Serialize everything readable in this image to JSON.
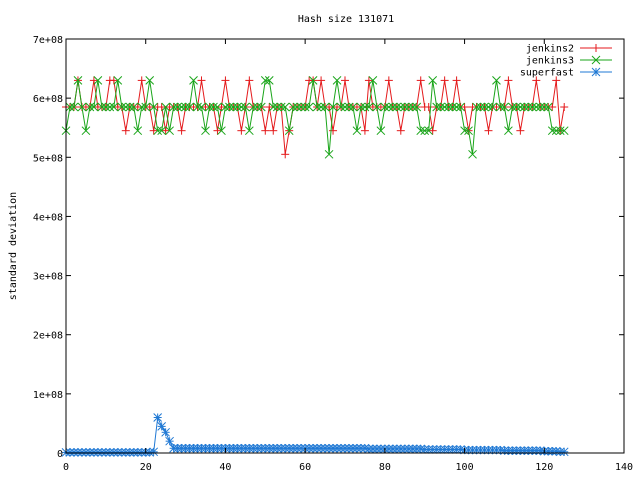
{
  "chart_data": {
    "type": "line",
    "title": "Hash size 131071",
    "xlabel": "",
    "ylabel": "standard deviation",
    "xlim": [
      0,
      140
    ],
    "ylim": [
      0,
      700000000
    ],
    "x_ticks": [
      0,
      20,
      40,
      60,
      80,
      100,
      120,
      140
    ],
    "x_tick_labels": [
      "0",
      "20",
      "40",
      "60",
      "80",
      "100",
      "120",
      "140"
    ],
    "y_ticks": [
      0,
      100000000,
      200000000,
      300000000,
      400000000,
      500000000,
      600000000,
      700000000
    ],
    "y_tick_labels": [
      "0",
      "1e+08",
      "2e+08",
      "3e+08",
      "4e+08",
      "5e+08",
      "6e+08",
      "7e+08"
    ],
    "grid": false,
    "legend_position": "top-right",
    "x": [
      0,
      1,
      2,
      3,
      4,
      5,
      6,
      7,
      8,
      9,
      10,
      11,
      12,
      13,
      14,
      15,
      16,
      17,
      18,
      19,
      20,
      21,
      22,
      23,
      24,
      25,
      26,
      27,
      28,
      29,
      30,
      31,
      32,
      33,
      34,
      35,
      36,
      37,
      38,
      39,
      40,
      41,
      42,
      43,
      44,
      45,
      46,
      47,
      48,
      49,
      50,
      51,
      52,
      53,
      54,
      55,
      56,
      57,
      58,
      59,
      60,
      61,
      62,
      63,
      64,
      65,
      66,
      67,
      68,
      69,
      70,
      71,
      72,
      73,
      74,
      75,
      76,
      77,
      78,
      79,
      80,
      81,
      82,
      83,
      84,
      85,
      86,
      87,
      88,
      89,
      90,
      91,
      92,
      93,
      94,
      95,
      96,
      97,
      98,
      99,
      100,
      101,
      102,
      103,
      104,
      105,
      106,
      107,
      108,
      109,
      110,
      111,
      112,
      113,
      114,
      115,
      116,
      117,
      118,
      119,
      120,
      121,
      122,
      123,
      124,
      125
    ],
    "series": [
      {
        "name": "jenkins2",
        "color": "#e41a1c",
        "marker": "plus",
        "values": [
          585000000,
          585000000,
          585000000,
          630000000,
          585000000,
          585000000,
          585000000,
          630000000,
          585000000,
          585000000,
          585000000,
          630000000,
          630000000,
          585000000,
          585000000,
          545000000,
          585000000,
          585000000,
          585000000,
          630000000,
          585000000,
          585000000,
          545000000,
          585000000,
          585000000,
          545000000,
          585000000,
          585000000,
          585000000,
          545000000,
          585000000,
          585000000,
          585000000,
          585000000,
          630000000,
          585000000,
          585000000,
          585000000,
          545000000,
          585000000,
          630000000,
          585000000,
          585000000,
          585000000,
          545000000,
          585000000,
          630000000,
          585000000,
          585000000,
          585000000,
          545000000,
          585000000,
          545000000,
          585000000,
          585000000,
          505000000,
          545000000,
          585000000,
          585000000,
          585000000,
          585000000,
          630000000,
          630000000,
          585000000,
          630000000,
          585000000,
          585000000,
          545000000,
          585000000,
          585000000,
          630000000,
          585000000,
          585000000,
          585000000,
          585000000,
          545000000,
          630000000,
          585000000,
          585000000,
          585000000,
          585000000,
          630000000,
          585000000,
          585000000,
          545000000,
          585000000,
          585000000,
          585000000,
          585000000,
          630000000,
          585000000,
          585000000,
          545000000,
          585000000,
          585000000,
          630000000,
          585000000,
          585000000,
          630000000,
          585000000,
          585000000,
          545000000,
          585000000,
          585000000,
          585000000,
          585000000,
          545000000,
          585000000,
          585000000,
          585000000,
          585000000,
          630000000,
          585000000,
          585000000,
          545000000,
          585000000,
          585000000,
          585000000,
          630000000,
          585000000,
          585000000,
          585000000,
          585000000,
          630000000,
          545000000,
          585000000
        ]
      },
      {
        "name": "jenkins3",
        "color": "#1aa51a",
        "marker": "cross",
        "values": [
          545000000,
          585000000,
          585000000,
          630000000,
          585000000,
          545000000,
          585000000,
          585000000,
          630000000,
          585000000,
          585000000,
          585000000,
          585000000,
          630000000,
          585000000,
          585000000,
          585000000,
          585000000,
          545000000,
          585000000,
          585000000,
          630000000,
          585000000,
          545000000,
          545000000,
          585000000,
          545000000,
          585000000,
          585000000,
          585000000,
          585000000,
          585000000,
          630000000,
          585000000,
          585000000,
          545000000,
          585000000,
          585000000,
          585000000,
          545000000,
          585000000,
          585000000,
          585000000,
          585000000,
          585000000,
          585000000,
          545000000,
          585000000,
          585000000,
          585000000,
          630000000,
          630000000,
          585000000,
          585000000,
          585000000,
          585000000,
          545000000,
          585000000,
          585000000,
          585000000,
          585000000,
          585000000,
          630000000,
          585000000,
          585000000,
          585000000,
          505000000,
          585000000,
          630000000,
          585000000,
          585000000,
          585000000,
          585000000,
          545000000,
          585000000,
          585000000,
          585000000,
          630000000,
          585000000,
          545000000,
          585000000,
          585000000,
          585000000,
          585000000,
          585000000,
          585000000,
          585000000,
          585000000,
          585000000,
          545000000,
          545000000,
          545000000,
          630000000,
          585000000,
          585000000,
          585000000,
          585000000,
          585000000,
          585000000,
          585000000,
          545000000,
          545000000,
          505000000,
          585000000,
          585000000,
          585000000,
          585000000,
          585000000,
          630000000,
          585000000,
          585000000,
          545000000,
          585000000,
          585000000,
          585000000,
          585000000,
          585000000,
          585000000,
          585000000,
          585000000,
          585000000,
          585000000,
          545000000,
          545000000,
          545000000,
          545000000
        ]
      },
      {
        "name": "superfast",
        "color": "#1f78d4",
        "marker": "star",
        "values": [
          1000000,
          1000000,
          1000000,
          1000000,
          1000000,
          1000000,
          1000000,
          1000000,
          1000000,
          1000000,
          1000000,
          1000000,
          1000000,
          1000000,
          1000000,
          1000000,
          1000000,
          1000000,
          1000000,
          1000000,
          1000000,
          1000000,
          2000000,
          60000000,
          45000000,
          35000000,
          20000000,
          8000000,
          8000000,
          8000000,
          8000000,
          8000000,
          8000000,
          8000000,
          8000000,
          8000000,
          8000000,
          8000000,
          8000000,
          8000000,
          8000000,
          8000000,
          8000000,
          8000000,
          8000000,
          8000000,
          8000000,
          8000000,
          8000000,
          8000000,
          8000000,
          8000000,
          8000000,
          8000000,
          8000000,
          8000000,
          8000000,
          8000000,
          8000000,
          8000000,
          8000000,
          8000000,
          8000000,
          8000000,
          8000000,
          8000000,
          8000000,
          8000000,
          8000000,
          8000000,
          8000000,
          8000000,
          8000000,
          8000000,
          8000000,
          8000000,
          7000000,
          7000000,
          7000000,
          7000000,
          7000000,
          7000000,
          7000000,
          7000000,
          7000000,
          7000000,
          7000000,
          7000000,
          7000000,
          7000000,
          6000000,
          6000000,
          6000000,
          6000000,
          6000000,
          6000000,
          6000000,
          6000000,
          6000000,
          6000000,
          5000000,
          5000000,
          5000000,
          5000000,
          5000000,
          5000000,
          5000000,
          5000000,
          5000000,
          5000000,
          4000000,
          4000000,
          4000000,
          4000000,
          4000000,
          4000000,
          4000000,
          4000000,
          4000000,
          4000000,
          3000000,
          3000000,
          3000000,
          3000000,
          2000000,
          2000000
        ]
      }
    ]
  }
}
